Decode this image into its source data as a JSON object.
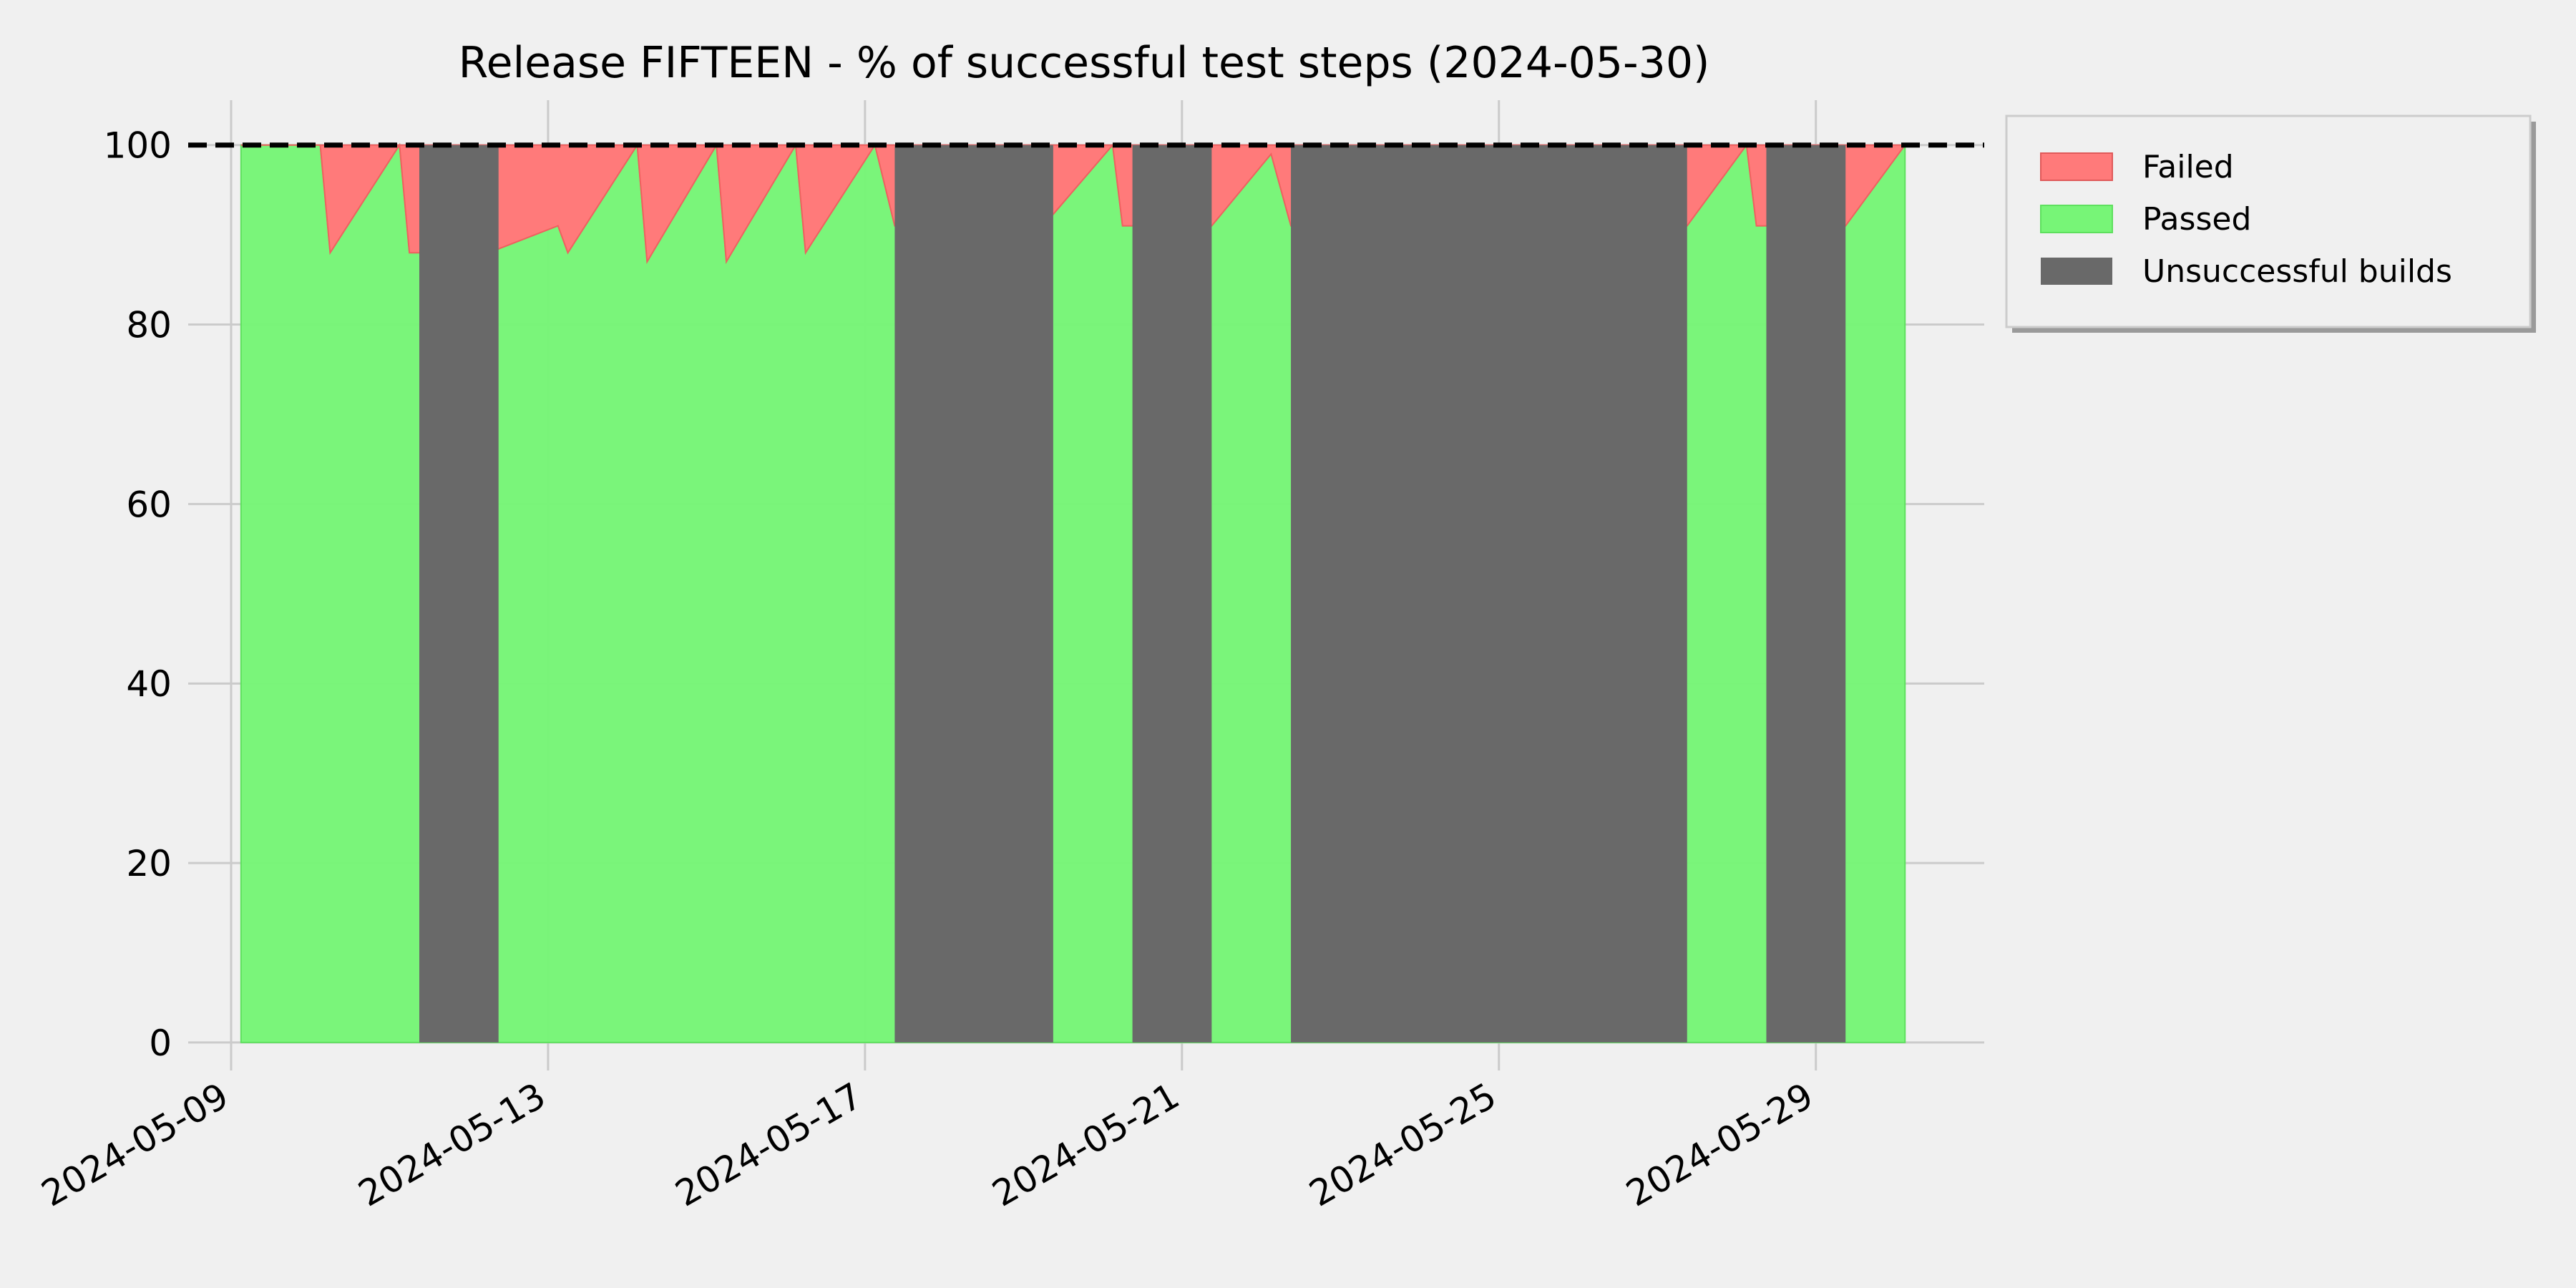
{
  "chart_data": {
    "type": "area",
    "title": "Release FIFTEEN - % of successful test steps (2024-05-30)",
    "xlabel": "",
    "ylabel": "",
    "x_range": [
      "2024-05-08T11:00",
      "2024-05-31T03:00"
    ],
    "ylim": [
      -2,
      105
    ],
    "yticks": [
      0,
      20,
      40,
      60,
      80,
      100
    ],
    "xticks": [
      "2024-05-09",
      "2024-05-13",
      "2024-05-17",
      "2024-05-21",
      "2024-05-25",
      "2024-05-29"
    ],
    "grid": true,
    "legend_position": "outside-top-right",
    "reference_line": {
      "y": 100,
      "style": "dashed",
      "color": "#000000"
    },
    "series": [
      {
        "name": "Failed",
        "color": "#ff7a7a",
        "note_role": "fills from passed % up to 100"
      },
      {
        "name": "Passed",
        "color": "#77f577",
        "points": [
          [
            "2024-05-09T03:00",
            100
          ],
          [
            "2024-05-10T03:00",
            100
          ],
          [
            "2024-05-10T06:00",
            88
          ],
          [
            "2024-05-11T03:00",
            100
          ],
          [
            "2024-05-11T06:00",
            88
          ],
          [
            "2024-05-12T06:00",
            88
          ],
          [
            "2024-05-13T03:00",
            91
          ],
          [
            "2024-05-13T06:00",
            88
          ],
          [
            "2024-05-14T03:00",
            100
          ],
          [
            "2024-05-14T06:00",
            87
          ],
          [
            "2024-05-15T03:00",
            100
          ],
          [
            "2024-05-15T06:00",
            87
          ],
          [
            "2024-05-16T03:00",
            100
          ],
          [
            "2024-05-16T06:00",
            88
          ],
          [
            "2024-05-17T03:00",
            100
          ],
          [
            "2024-05-17T09:00",
            91
          ],
          [
            "2024-05-19T06:00",
            91
          ],
          [
            "2024-05-20T03:00",
            100
          ],
          [
            "2024-05-20T06:00",
            91
          ],
          [
            "2024-05-21T09:00",
            91
          ],
          [
            "2024-05-22T03:00",
            99
          ],
          [
            "2024-05-22T09:00",
            91
          ],
          [
            "2024-05-27T09:00",
            91
          ],
          [
            "2024-05-28T03:00",
            100
          ],
          [
            "2024-05-28T06:00",
            91
          ],
          [
            "2024-05-29T09:00",
            91
          ],
          [
            "2024-05-30T03:00",
            100
          ]
        ]
      },
      {
        "name": "Unsuccessful builds",
        "color": "#696969",
        "spans": [
          [
            "2024-05-11T09:00",
            "2024-05-12T09:00"
          ],
          [
            "2024-05-17T09:00",
            "2024-05-19T09:00"
          ],
          [
            "2024-05-20T09:00",
            "2024-05-21T09:00"
          ],
          [
            "2024-05-22T09:00",
            "2024-05-27T09:00"
          ],
          [
            "2024-05-28T09:00",
            "2024-05-29T09:00"
          ]
        ]
      }
    ]
  }
}
